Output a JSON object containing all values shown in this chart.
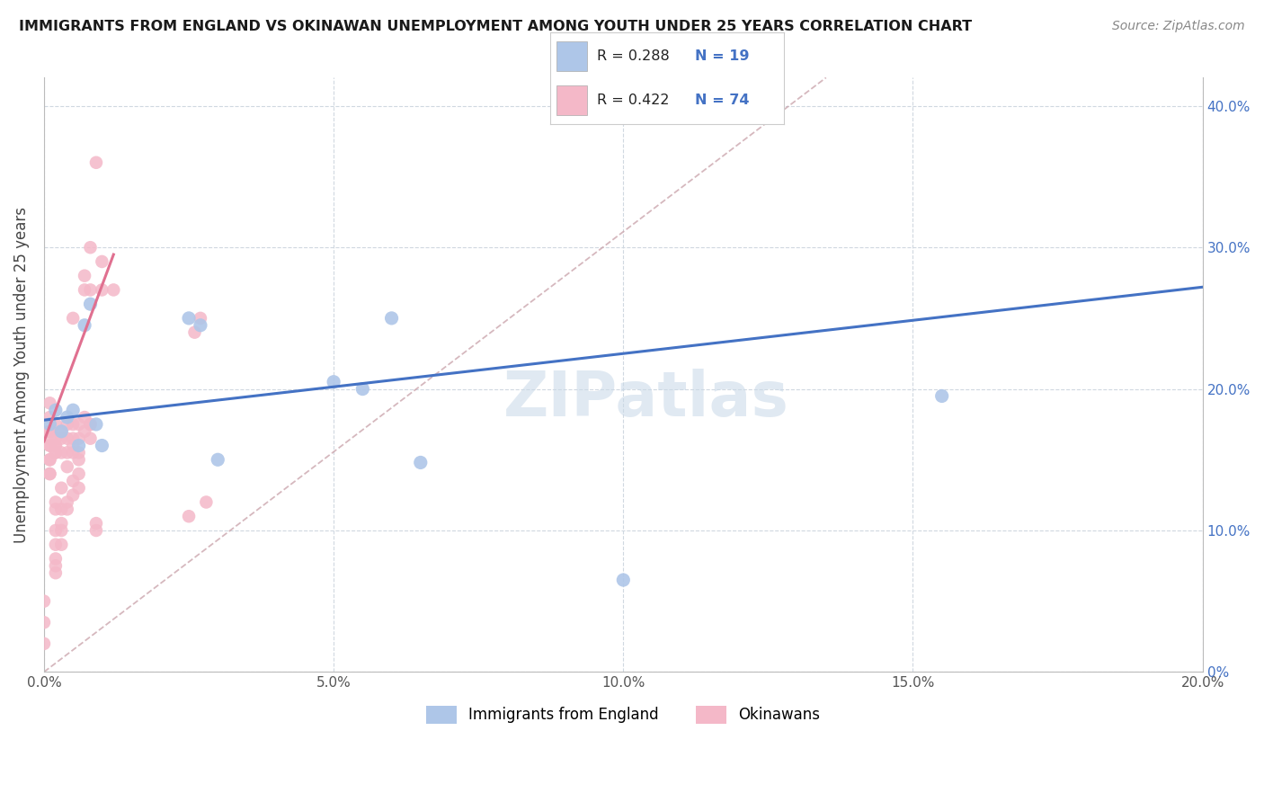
{
  "title": "IMMIGRANTS FROM ENGLAND VS OKINAWAN UNEMPLOYMENT AMONG YOUTH UNDER 25 YEARS CORRELATION CHART",
  "source": "Source: ZipAtlas.com",
  "ylabel": "Unemployment Among Youth under 25 years",
  "xlim": [
    0,
    0.2
  ],
  "ylim": [
    0,
    0.42
  ],
  "x_ticks": [
    0.0,
    0.05,
    0.1,
    0.15,
    0.2
  ],
  "y_ticks": [
    0.0,
    0.1,
    0.2,
    0.3,
    0.4
  ],
  "legend_r_blue": "R = 0.288",
  "legend_n_blue": "N = 19",
  "legend_r_pink": "R = 0.422",
  "legend_n_pink": "N = 74",
  "legend_label_blue": "Immigrants from England",
  "legend_label_pink": "Okinawans",
  "color_blue_scatter": "#aec6e8",
  "color_blue_line": "#4472c4",
  "color_pink_scatter": "#f4b8c8",
  "color_pink_line": "#e07090",
  "color_diag_line": "#c8a0a8",
  "watermark_text": "ZIPatlas",
  "watermark_color": "#c8d8e8",
  "blue_line_x": [
    0.0,
    0.2
  ],
  "blue_line_y": [
    0.178,
    0.272
  ],
  "pink_line_x": [
    0.0,
    0.012
  ],
  "pink_line_y": [
    0.163,
    0.295
  ],
  "diag_line_x": [
    0.0,
    0.135
  ],
  "diag_line_y": [
    0.0,
    0.42
  ],
  "blue_x": [
    0.001,
    0.002,
    0.003,
    0.004,
    0.005,
    0.006,
    0.007,
    0.008,
    0.009,
    0.01,
    0.025,
    0.027,
    0.03,
    0.055,
    0.06,
    0.065,
    0.1,
    0.155,
    0.05
  ],
  "blue_y": [
    0.175,
    0.185,
    0.17,
    0.18,
    0.185,
    0.16,
    0.245,
    0.26,
    0.175,
    0.16,
    0.25,
    0.245,
    0.15,
    0.2,
    0.25,
    0.148,
    0.065,
    0.195,
    0.205
  ],
  "pink_x": [
    0.0,
    0.0,
    0.0,
    0.001,
    0.001,
    0.001,
    0.001,
    0.001,
    0.001,
    0.001,
    0.001,
    0.001,
    0.001,
    0.001,
    0.001,
    0.002,
    0.002,
    0.002,
    0.002,
    0.002,
    0.002,
    0.002,
    0.002,
    0.002,
    0.002,
    0.002,
    0.002,
    0.002,
    0.003,
    0.003,
    0.003,
    0.003,
    0.003,
    0.003,
    0.003,
    0.003,
    0.004,
    0.004,
    0.004,
    0.004,
    0.004,
    0.004,
    0.005,
    0.005,
    0.005,
    0.005,
    0.005,
    0.005,
    0.005,
    0.006,
    0.006,
    0.006,
    0.006,
    0.006,
    0.006,
    0.007,
    0.007,
    0.007,
    0.007,
    0.008,
    0.008,
    0.008,
    0.008,
    0.008,
    0.009,
    0.009,
    0.009,
    0.01,
    0.01,
    0.012,
    0.025,
    0.026,
    0.027,
    0.028
  ],
  "pink_y": [
    0.035,
    0.05,
    0.02,
    0.17,
    0.16,
    0.17,
    0.19,
    0.18,
    0.17,
    0.15,
    0.165,
    0.16,
    0.15,
    0.14,
    0.14,
    0.16,
    0.175,
    0.165,
    0.155,
    0.16,
    0.155,
    0.12,
    0.115,
    0.1,
    0.09,
    0.08,
    0.075,
    0.07,
    0.17,
    0.165,
    0.155,
    0.13,
    0.115,
    0.105,
    0.1,
    0.09,
    0.175,
    0.165,
    0.155,
    0.145,
    0.12,
    0.115,
    0.175,
    0.165,
    0.16,
    0.155,
    0.135,
    0.125,
    0.25,
    0.175,
    0.165,
    0.155,
    0.15,
    0.14,
    0.13,
    0.28,
    0.27,
    0.18,
    0.17,
    0.175,
    0.165,
    0.27,
    0.175,
    0.3,
    0.1,
    0.105,
    0.36,
    0.27,
    0.29,
    0.27,
    0.11,
    0.24,
    0.25,
    0.12
  ]
}
